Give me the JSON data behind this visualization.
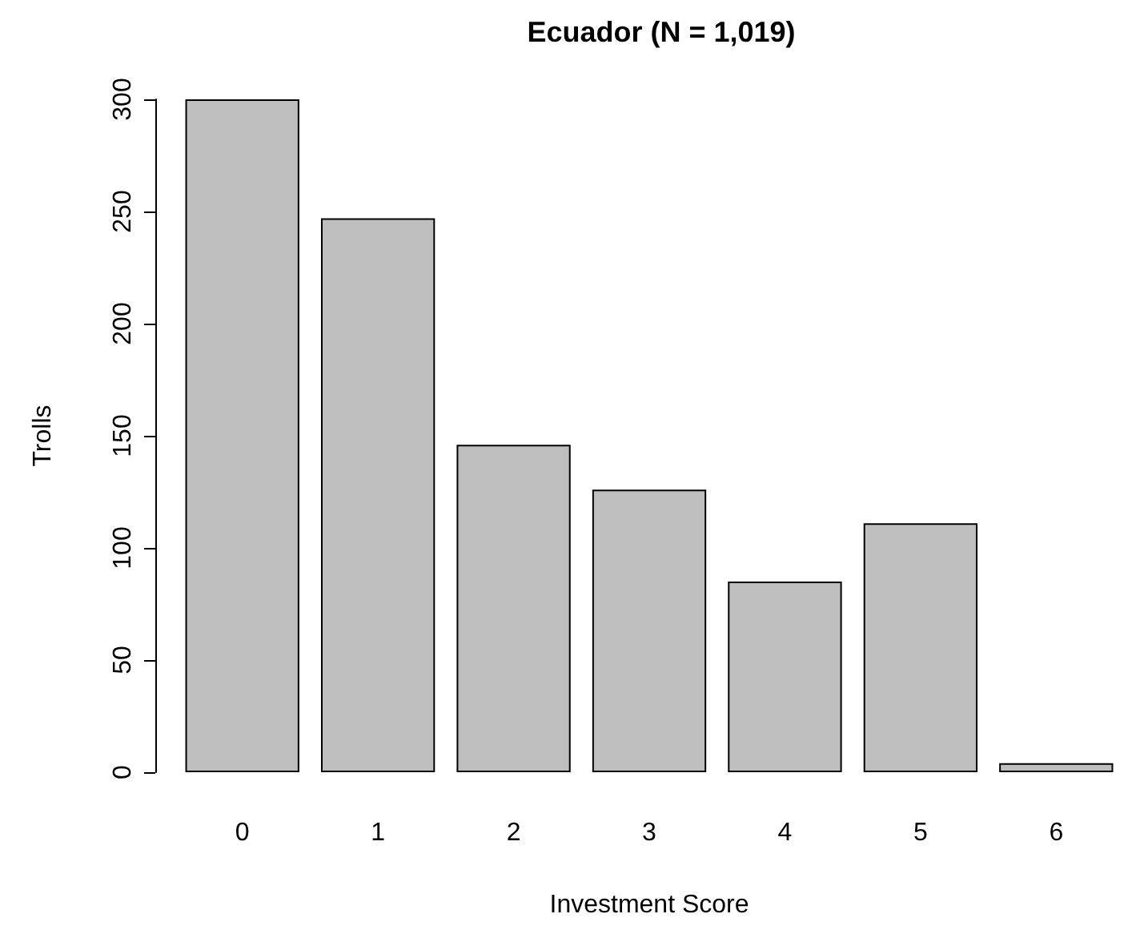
{
  "chart_data": {
    "type": "bar",
    "title": "Ecuador (N = 1,019)",
    "xlabel": "Investment Score",
    "ylabel": "Trolls",
    "categories": [
      "0",
      "1",
      "2",
      "3",
      "4",
      "5",
      "6"
    ],
    "values": [
      300,
      247,
      146,
      126,
      85,
      111,
      4
    ],
    "color": "#bebebe",
    "ylim": [
      0,
      300
    ],
    "yticks": [
      0,
      50,
      100,
      150,
      200,
      250,
      300
    ]
  }
}
